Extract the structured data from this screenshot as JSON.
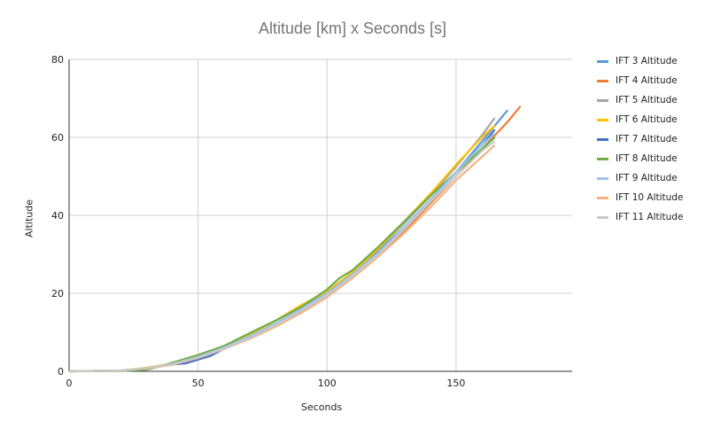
{
  "chart_data": {
    "type": "line",
    "title": "Altitude [km] x Seconds [s]",
    "xlabel": "Seconds",
    "ylabel": "Altitude",
    "xlim": [
      0,
      195
    ],
    "ylim": [
      0,
      80
    ],
    "xticks": [
      0,
      50,
      100,
      150
    ],
    "yticks": [
      0,
      20,
      40,
      60,
      80
    ],
    "grid": true,
    "legend_position": "right",
    "series": [
      {
        "name": "IFT 3 Altitude",
        "color": "#5B9BD5",
        "x": [
          0,
          20,
          30,
          40,
          50,
          60,
          70,
          80,
          90,
          100,
          110,
          120,
          130,
          140,
          150,
          160,
          170
        ],
        "y": [
          0,
          0.2,
          0.8,
          1.8,
          3.6,
          6,
          8.8,
          12,
          15.8,
          20,
          25,
          31,
          37,
          44,
          51,
          59,
          67
        ]
      },
      {
        "name": "IFT 4 Altitude",
        "color": "#ED7D31",
        "x": [
          0,
          20,
          30,
          40,
          50,
          60,
          70,
          80,
          90,
          100,
          110,
          120,
          130,
          140,
          150,
          160,
          170,
          175
        ],
        "y": [
          0,
          0.2,
          0.7,
          1.7,
          3.4,
          5.8,
          8.4,
          11.6,
          15.4,
          19.5,
          24.5,
          30,
          36,
          43,
          50,
          57,
          64,
          68
        ]
      },
      {
        "name": "IFT 5 Altitude",
        "color": "#A5A5A5",
        "x": [
          0,
          20,
          30,
          40,
          50,
          60,
          70,
          80,
          90,
          100,
          110,
          120,
          130,
          140,
          150,
          160,
          165
        ],
        "y": [
          0,
          0.2,
          0.8,
          1.9,
          3.7,
          6.2,
          9,
          12.3,
          16.2,
          20.5,
          25.5,
          31.5,
          38,
          45,
          52.5,
          60.5,
          65
        ]
      },
      {
        "name": "IFT 6 Altitude",
        "color": "#FFC000",
        "x": [
          0,
          20,
          30,
          40,
          50,
          60,
          65,
          70,
          80,
          90,
          100,
          110,
          120,
          130,
          140,
          150,
          160,
          165
        ],
        "y": [
          0,
          0.2,
          0.9,
          2,
          3.8,
          6.2,
          8,
          9.3,
          13,
          17,
          20.5,
          25.5,
          31.5,
          38.5,
          45.5,
          53,
          60,
          63
        ]
      },
      {
        "name": "IFT 7 Altitude",
        "color": "#4472C4",
        "x": [
          0,
          20,
          30,
          40,
          45,
          50,
          55,
          60,
          70,
          80,
          90,
          100,
          110,
          120,
          130,
          140,
          150,
          160,
          165
        ],
        "y": [
          0,
          0.2,
          0.7,
          1.8,
          2,
          3,
          4,
          5.8,
          9,
          12,
          16,
          20,
          25,
          30.5,
          37,
          44,
          51,
          58,
          62
        ]
      },
      {
        "name": "IFT 8 Altitude",
        "color": "#70AD47",
        "x": [
          0,
          20,
          30,
          35,
          40,
          50,
          60,
          70,
          80,
          90,
          100,
          105,
          110,
          120,
          130,
          140,
          150,
          160,
          165
        ],
        "y": [
          0,
          0.1,
          0.4,
          1.2,
          2.2,
          4.2,
          6.5,
          9.8,
          13,
          16.5,
          21,
          24,
          26,
          32,
          38.5,
          45,
          51,
          57,
          60
        ]
      },
      {
        "name": "IFT 9 Altitude",
        "color": "#9DC3E6",
        "x": [
          0,
          20,
          30,
          40,
          50,
          60,
          70,
          80,
          90,
          100,
          110,
          120,
          130,
          140,
          150,
          160,
          165
        ],
        "y": [
          0,
          0.2,
          0.8,
          1.9,
          3.7,
          6.1,
          9,
          12.3,
          16,
          20,
          25,
          30.5,
          37,
          44,
          51,
          58,
          61
        ]
      },
      {
        "name": "IFT 10 Altitude",
        "color": "#F4B183",
        "x": [
          0,
          20,
          30,
          40,
          50,
          60,
          70,
          80,
          90,
          100,
          110,
          120,
          130,
          140,
          150,
          160,
          165
        ],
        "y": [
          0,
          0.2,
          0.7,
          1.7,
          3.4,
          5.7,
          8.3,
          11.4,
          15,
          19,
          24,
          29.5,
          35.5,
          42,
          49,
          55,
          58
        ]
      },
      {
        "name": "IFT 11 Altitude",
        "color": "#C9C9C9",
        "x": [
          0,
          20,
          30,
          40,
          50,
          60,
          70,
          80,
          90,
          100,
          110,
          120,
          130,
          140,
          150,
          160,
          165
        ],
        "y": [
          0,
          0.2,
          0.8,
          1.8,
          3.5,
          5.8,
          8.5,
          11.8,
          15.5,
          19.5,
          24.5,
          30,
          36.5,
          43.5,
          50,
          56.5,
          59
        ]
      }
    ]
  }
}
